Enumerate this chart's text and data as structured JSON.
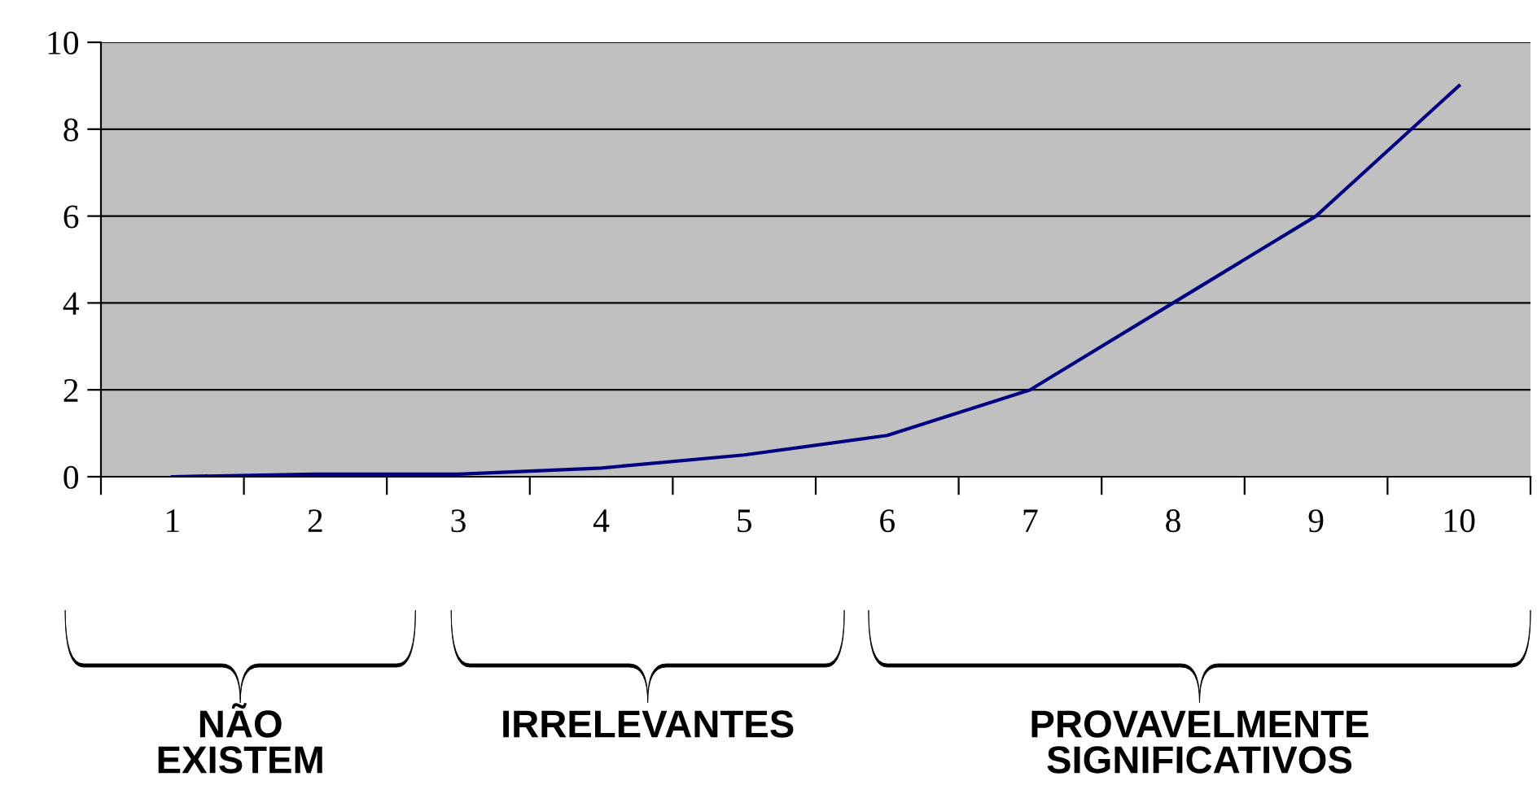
{
  "chart_data": {
    "type": "line",
    "categories": [
      "1",
      "2",
      "3",
      "4",
      "5",
      "6",
      "7",
      "8",
      "9",
      "10"
    ],
    "series": [
      {
        "color": "#000080",
        "values": [
          0,
          0.06,
          0.06,
          0.2,
          0.5,
          0.95,
          2,
          4,
          6,
          9
        ]
      }
    ],
    "ylim": [
      0,
      10
    ],
    "yticks": [
      0,
      2,
      4,
      6,
      8,
      10
    ],
    "grid": "y",
    "legend": false,
    "marker": "none",
    "line_style": "solid",
    "annotations": [
      "NÃO\nEXISTEM",
      "IRRELEVANTES",
      "PROVAVELMENTE\nSIGNIFICATIVOS"
    ]
  }
}
